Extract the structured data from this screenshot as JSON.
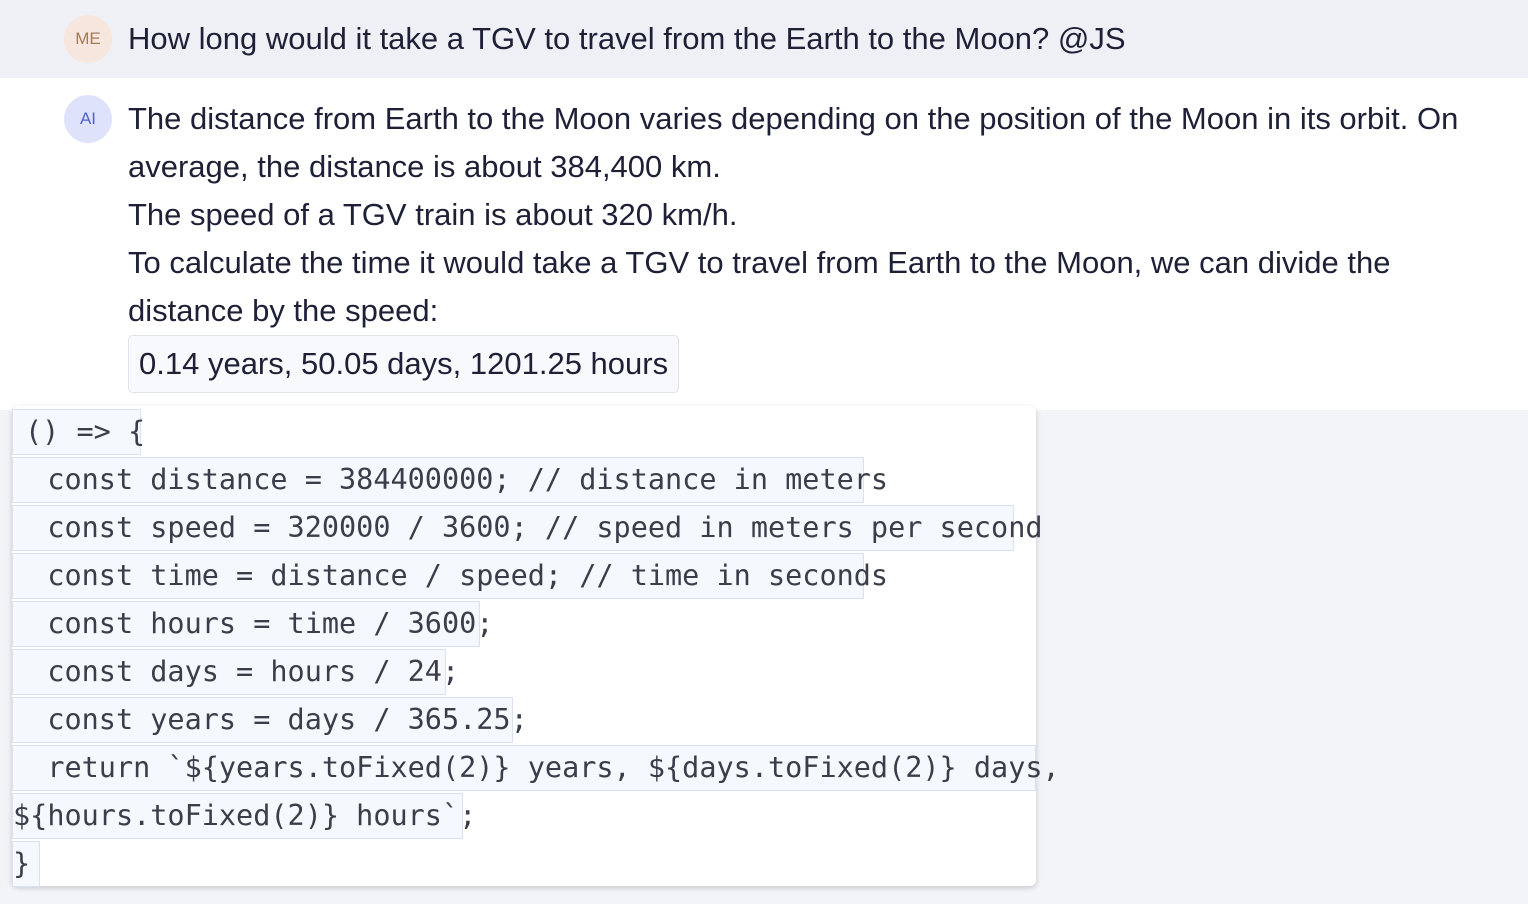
{
  "user_message": {
    "avatar_text": "ME",
    "text": "How long would it take a TGV to travel from the Earth to the Moon? @JS"
  },
  "ai_message": {
    "avatar_text": "AI",
    "paragraphs": [
      "The distance from Earth to the Moon varies depending on the position of the Moon in its orbit. On average, the distance is about 384,400 km.",
      "The speed of a TGV train is about 320 km/h.",
      "To calculate the time it would take a TGV to travel from Earth to the Moon, we can divide the distance by the speed:"
    ],
    "result": "0.14 years, 50.05 days, 1201.25 hours"
  },
  "code": {
    "lines": [
      "() => {",
      "  const distance = 384400000; // distance in meters",
      "  const speed = 320000 / 3600; // speed in meters per second",
      "  const time = distance / speed; // time in seconds",
      "  const hours = time / 3600;",
      "  const days = hours / 24;",
      "  const years = days / 365.25;",
      "  return `${years.toFixed(2)} years, ${days.toFixed(2)} days,",
      "${hours.toFixed(2)} hours`;",
      "}"
    ]
  },
  "colors": {
    "user_row_bg": "#eef0f5",
    "ai_row_bg": "#ffffff",
    "me_avatar_bg": "#f7e6dd",
    "ai_avatar_bg": "#dee3fb",
    "code_line_border": "#d9e2f2"
  }
}
